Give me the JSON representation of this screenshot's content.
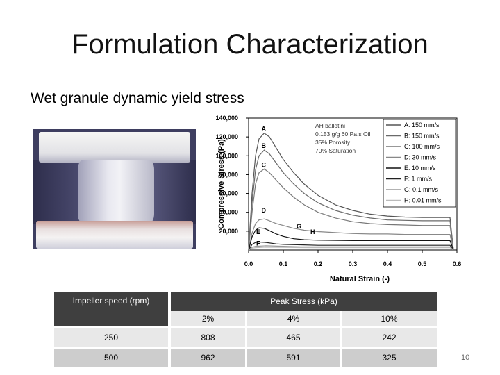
{
  "slide": {
    "title": "Formulation Characterization",
    "subtitle": "Wet granule dynamic yield stress",
    "page_number": "10"
  },
  "chart_data": {
    "type": "line",
    "xlabel": "Natural Strain (-)",
    "ylabel": "Compressive Stress (Pa)",
    "xlim": [
      0,
      0.6
    ],
    "ylim": [
      0,
      140000
    ],
    "x_ticks": [
      "0.0",
      "0.1",
      "0.2",
      "0.3",
      "0.4",
      "0.5",
      "0.6"
    ],
    "y_ticks": [
      "20,000",
      "40,000",
      "60,000",
      "80,000",
      "100,000",
      "120,000",
      "140,000"
    ],
    "annotation": [
      "AH ballotini",
      "0.153 g/g 60 Pa.s Oil",
      "35% Porosity",
      "70% Saturation"
    ],
    "legend_position": "top-right",
    "series": [
      {
        "name": "A: 150 mm/s",
        "label": "A",
        "color": "#555555",
        "x": [
          0,
          0.01,
          0.02,
          0.03,
          0.045,
          0.06,
          0.08,
          0.1,
          0.13,
          0.16,
          0.2,
          0.25,
          0.3,
          0.35,
          0.4,
          0.45,
          0.5,
          0.55,
          0.58,
          0.59
        ],
        "y": [
          0,
          60000,
          100000,
          118000,
          124000,
          120000,
          108000,
          96000,
          82000,
          70000,
          58000,
          48000,
          42000,
          38000,
          36000,
          35000,
          34500,
          34500,
          34500,
          0
        ]
      },
      {
        "name": "B: 150 mm/s",
        "label": "B",
        "color": "#6a6a6a",
        "x": [
          0,
          0.01,
          0.02,
          0.03,
          0.045,
          0.06,
          0.08,
          0.1,
          0.13,
          0.16,
          0.2,
          0.25,
          0.3,
          0.35,
          0.4,
          0.45,
          0.5,
          0.55,
          0.58,
          0.59
        ],
        "y": [
          0,
          50000,
          85000,
          100000,
          106000,
          102000,
          92000,
          82000,
          70000,
          60000,
          50000,
          42000,
          37000,
          34000,
          32000,
          31500,
          31000,
          31000,
          31000,
          0
        ]
      },
      {
        "name": "C: 100 mm/s",
        "label": "C",
        "color": "#777777",
        "x": [
          0,
          0.01,
          0.02,
          0.03,
          0.045,
          0.06,
          0.08,
          0.1,
          0.13,
          0.16,
          0.2,
          0.25,
          0.3,
          0.35,
          0.4,
          0.45,
          0.5,
          0.55,
          0.58,
          0.59
        ],
        "y": [
          0,
          40000,
          70000,
          82000,
          86000,
          82000,
          74000,
          66000,
          56000,
          48000,
          40000,
          34000,
          30000,
          28000,
          27000,
          26500,
          26000,
          26000,
          26000,
          0
        ]
      },
      {
        "name": "D: 30 mm/s",
        "label": "D",
        "color": "#888888",
        "x": [
          0,
          0.01,
          0.02,
          0.03,
          0.045,
          0.06,
          0.08,
          0.1,
          0.13,
          0.16,
          0.2,
          0.25,
          0.3,
          0.35,
          0.4,
          0.45,
          0.5,
          0.55,
          0.58,
          0.59
        ],
        "y": [
          0,
          18000,
          28000,
          32000,
          33000,
          31000,
          28000,
          26000,
          23000,
          21000,
          19500,
          18500,
          17500,
          17000,
          17000,
          16500,
          16500,
          16500,
          16500,
          0
        ]
      },
      {
        "name": "E: 10 mm/s",
        "label": "E",
        "color": "#111111",
        "x": [
          0,
          0.01,
          0.02,
          0.03,
          0.045,
          0.06,
          0.08,
          0.1,
          0.13,
          0.16,
          0.2,
          0.3,
          0.4,
          0.5,
          0.58,
          0.59
        ],
        "y": [
          0,
          14000,
          21000,
          23500,
          23000,
          20500,
          17000,
          14500,
          12000,
          11000,
          10500,
          10000,
          10000,
          10000,
          10000,
          0
        ]
      },
      {
        "name": "F: 1 mm/s",
        "label": "F",
        "color": "#222222",
        "x": [
          0,
          0.01,
          0.02,
          0.03,
          0.05,
          0.08,
          0.1,
          0.15,
          0.2,
          0.3,
          0.4,
          0.5,
          0.58,
          0.59
        ],
        "y": [
          0,
          6000,
          8000,
          8500,
          8000,
          6500,
          6000,
          5500,
          5000,
          5000,
          5000,
          5000,
          5000,
          0
        ]
      },
      {
        "name": "G: 0.1 mm/s",
        "label": "G",
        "color": "#999999",
        "x": [
          0,
          0.01,
          0.02,
          0.05,
          0.1,
          0.15,
          0.2,
          0.3,
          0.4,
          0.5,
          0.58,
          0.59
        ],
        "y": [
          0,
          3000,
          4000,
          4500,
          4000,
          3500,
          3500,
          3500,
          3500,
          3500,
          3500,
          0
        ]
      },
      {
        "name": "H: 0.01 mm/s",
        "label": "H",
        "color": "#bbbbbb",
        "x": [
          0,
          0.01,
          0.02,
          0.05,
          0.1,
          0.15,
          0.2,
          0.3,
          0.4,
          0.5,
          0.58,
          0.59
        ],
        "y": [
          0,
          2000,
          2500,
          3000,
          2800,
          2600,
          2500,
          2500,
          2500,
          2500,
          2500,
          0
        ]
      }
    ]
  },
  "table": {
    "header_speed": "Impeller speed (rpm)",
    "header_peak": "Peak Stress (kPa)",
    "sub_headers": [
      "2%",
      "4%",
      "10%"
    ],
    "rows": [
      {
        "speed": "250",
        "values": [
          "808",
          "465",
          "242"
        ]
      },
      {
        "speed": "500",
        "values": [
          "962",
          "591",
          "325"
        ]
      }
    ]
  }
}
